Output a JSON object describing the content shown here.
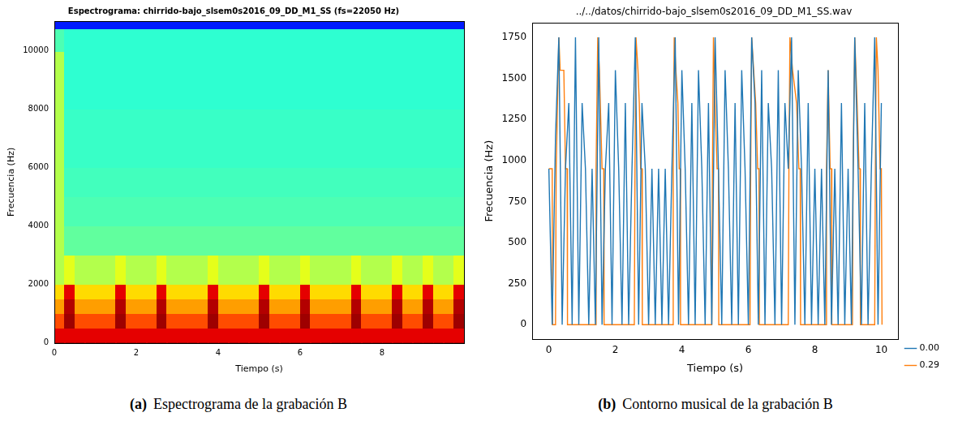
{
  "chart_data": [
    {
      "type": "heatmap",
      "panel_label": "(a)",
      "caption": "Espectrograma de la grabación B",
      "title": "Espectrograma: chirrido-bajo_slsem0s2016_09_DD_M1_SS (fs=22050 Hz)",
      "x_label": "Tiempo (s)",
      "y_label": "Frecuencia (Hz)",
      "xlim": [
        0,
        10
      ],
      "xticks": [
        0,
        2,
        4,
        6,
        8
      ],
      "ylim": [
        0,
        11025
      ],
      "yticks": [
        0,
        2000,
        4000,
        6000,
        8000,
        10000
      ],
      "grid": false,
      "x_bins": [
        0,
        0.25,
        0.5,
        0.75,
        1,
        1.25,
        1.5,
        1.75,
        2,
        2.25,
        2.5,
        2.75,
        3,
        3.25,
        3.5,
        3.75,
        4,
        4.25,
        4.5,
        4.75,
        5,
        5.25,
        5.5,
        5.75,
        6,
        6.25,
        6.5,
        6.75,
        7,
        7.25,
        7.5,
        7.75,
        8,
        8.25,
        8.5,
        8.75,
        9,
        9.25,
        9.5,
        9.75,
        10
      ],
      "y_bins": [
        0,
        500,
        1000,
        1500,
        2000,
        3000,
        4000,
        5000,
        6000,
        7000,
        8000,
        10000,
        10800,
        11025
      ],
      "cells": [
        [
          0.9,
          0.9,
          0.9,
          0.9,
          0.9,
          0.9,
          0.9,
          0.9,
          0.9,
          0.9,
          0.9,
          0.9,
          0.9,
          0.9,
          0.9,
          0.9,
          0.9,
          0.9,
          0.9,
          0.9,
          0.9,
          0.9,
          0.9,
          0.9,
          0.9,
          0.9,
          0.9,
          0.9,
          0.9,
          0.9,
          0.9,
          0.9,
          0.9,
          0.9,
          0.9,
          0.9,
          0.9,
          0.9,
          0.9,
          0.9
        ],
        [
          0.8,
          0.97,
          0.8,
          0.8,
          0.8,
          0.8,
          0.97,
          0.8,
          0.8,
          0.8,
          0.97,
          0.8,
          0.8,
          0.8,
          0.8,
          0.97,
          0.8,
          0.8,
          0.8,
          0.8,
          0.97,
          0.8,
          0.8,
          0.8,
          0.97,
          0.8,
          0.8,
          0.8,
          0.8,
          0.97,
          0.8,
          0.8,
          0.8,
          0.97,
          0.8,
          0.8,
          0.97,
          0.8,
          0.8,
          0.97
        ],
        [
          0.72,
          0.95,
          0.72,
          0.72,
          0.72,
          0.72,
          0.95,
          0.72,
          0.72,
          0.72,
          0.95,
          0.72,
          0.72,
          0.72,
          0.72,
          0.95,
          0.72,
          0.72,
          0.72,
          0.72,
          0.95,
          0.72,
          0.72,
          0.72,
          0.95,
          0.72,
          0.72,
          0.72,
          0.72,
          0.95,
          0.72,
          0.72,
          0.72,
          0.95,
          0.72,
          0.72,
          0.95,
          0.72,
          0.72,
          0.95
        ],
        [
          0.66,
          0.9,
          0.66,
          0.66,
          0.66,
          0.66,
          0.9,
          0.66,
          0.66,
          0.66,
          0.9,
          0.66,
          0.66,
          0.66,
          0.66,
          0.9,
          0.66,
          0.66,
          0.66,
          0.66,
          0.9,
          0.66,
          0.66,
          0.66,
          0.9,
          0.66,
          0.66,
          0.66,
          0.66,
          0.9,
          0.66,
          0.66,
          0.66,
          0.9,
          0.66,
          0.66,
          0.9,
          0.66,
          0.66,
          0.9
        ],
        [
          0.55,
          0.6,
          0.55,
          0.55,
          0.55,
          0.55,
          0.6,
          0.55,
          0.55,
          0.55,
          0.6,
          0.55,
          0.55,
          0.55,
          0.55,
          0.6,
          0.55,
          0.55,
          0.55,
          0.55,
          0.6,
          0.55,
          0.55,
          0.55,
          0.6,
          0.55,
          0.55,
          0.55,
          0.55,
          0.6,
          0.55,
          0.55,
          0.55,
          0.6,
          0.55,
          0.55,
          0.6,
          0.55,
          0.55,
          0.6
        ],
        [
          0.55,
          0.47,
          0.47,
          0.47,
          0.47,
          0.47,
          0.47,
          0.47,
          0.47,
          0.47,
          0.47,
          0.47,
          0.47,
          0.47,
          0.47,
          0.47,
          0.47,
          0.47,
          0.47,
          0.47,
          0.47,
          0.47,
          0.47,
          0.47,
          0.47,
          0.47,
          0.47,
          0.47,
          0.47,
          0.47,
          0.47,
          0.47,
          0.47,
          0.47,
          0.47,
          0.47,
          0.47,
          0.47,
          0.47,
          0.47
        ],
        [
          0.55,
          0.45,
          0.45,
          0.45,
          0.45,
          0.45,
          0.45,
          0.45,
          0.45,
          0.45,
          0.45,
          0.45,
          0.45,
          0.45,
          0.45,
          0.45,
          0.45,
          0.45,
          0.45,
          0.45,
          0.45,
          0.45,
          0.45,
          0.45,
          0.45,
          0.45,
          0.45,
          0.45,
          0.45,
          0.45,
          0.45,
          0.45,
          0.45,
          0.45,
          0.45,
          0.45,
          0.45,
          0.45,
          0.45,
          0.45
        ],
        [
          0.55,
          0.44,
          0.44,
          0.44,
          0.44,
          0.44,
          0.44,
          0.44,
          0.44,
          0.44,
          0.44,
          0.44,
          0.44,
          0.44,
          0.44,
          0.44,
          0.44,
          0.44,
          0.44,
          0.44,
          0.44,
          0.44,
          0.44,
          0.44,
          0.44,
          0.44,
          0.44,
          0.44,
          0.44,
          0.44,
          0.44,
          0.44,
          0.44,
          0.44,
          0.44,
          0.44,
          0.44,
          0.44,
          0.44,
          0.44
        ],
        [
          0.55,
          0.43,
          0.43,
          0.43,
          0.43,
          0.43,
          0.43,
          0.43,
          0.43,
          0.43,
          0.43,
          0.43,
          0.43,
          0.43,
          0.43,
          0.43,
          0.43,
          0.43,
          0.43,
          0.43,
          0.43,
          0.43,
          0.43,
          0.43,
          0.43,
          0.43,
          0.43,
          0.43,
          0.43,
          0.43,
          0.43,
          0.43,
          0.43,
          0.43,
          0.43,
          0.43,
          0.43,
          0.43,
          0.43,
          0.43
        ],
        [
          0.55,
          0.43,
          0.43,
          0.43,
          0.43,
          0.43,
          0.43,
          0.43,
          0.43,
          0.43,
          0.43,
          0.43,
          0.43,
          0.43,
          0.43,
          0.43,
          0.43,
          0.43,
          0.43,
          0.43,
          0.43,
          0.43,
          0.43,
          0.43,
          0.43,
          0.43,
          0.43,
          0.43,
          0.43,
          0.43,
          0.43,
          0.43,
          0.43,
          0.43,
          0.43,
          0.43,
          0.43,
          0.43,
          0.43,
          0.43
        ],
        [
          0.55,
          0.42,
          0.42,
          0.42,
          0.42,
          0.42,
          0.42,
          0.42,
          0.42,
          0.42,
          0.42,
          0.42,
          0.42,
          0.42,
          0.42,
          0.42,
          0.42,
          0.42,
          0.42,
          0.42,
          0.42,
          0.42,
          0.42,
          0.42,
          0.42,
          0.42,
          0.42,
          0.42,
          0.42,
          0.42,
          0.42,
          0.42,
          0.42,
          0.42,
          0.42,
          0.42,
          0.42,
          0.42,
          0.42,
          0.42
        ],
        [
          0.45,
          0.42,
          0.42,
          0.42,
          0.42,
          0.42,
          0.42,
          0.42,
          0.42,
          0.42,
          0.42,
          0.42,
          0.42,
          0.42,
          0.42,
          0.42,
          0.42,
          0.42,
          0.42,
          0.42,
          0.42,
          0.42,
          0.42,
          0.42,
          0.42,
          0.42,
          0.42,
          0.42,
          0.42,
          0.42,
          0.42,
          0.42,
          0.42,
          0.42,
          0.42,
          0.42,
          0.42,
          0.42,
          0.42,
          0.42
        ],
        [
          0.15,
          0.15,
          0.15,
          0.15,
          0.15,
          0.15,
          0.15,
          0.15,
          0.15,
          0.15,
          0.15,
          0.15,
          0.15,
          0.15,
          0.15,
          0.15,
          0.15,
          0.15,
          0.15,
          0.15,
          0.15,
          0.15,
          0.15,
          0.15,
          0.15,
          0.15,
          0.15,
          0.15,
          0.15,
          0.15,
          0.15,
          0.15,
          0.15,
          0.15,
          0.15,
          0.15,
          0.15,
          0.15,
          0.15,
          0.15
        ]
      ]
    },
    {
      "type": "line",
      "panel_label": "(b)",
      "caption": "Contorno musical de la grabación B",
      "title": "../../datos/chirrido-bajo_slsem0s2016_09_DD_M1_SS.wav",
      "x_label": "Tiempo (s)",
      "y_label": "Frecuencia (Hz)",
      "xlim": [
        -0.5,
        10.5
      ],
      "xticks": [
        0,
        2,
        4,
        6,
        8,
        10
      ],
      "ylim": [
        -87.5,
        1837.5
      ],
      "yticks": [
        0,
        250,
        500,
        750,
        1000,
        1250,
        1500,
        1750
      ],
      "grid": false,
      "legend": "right",
      "series": [
        {
          "name": "0.00",
          "color": "#1f77b4",
          "x": [
            0,
            0.1,
            0.2,
            0.3,
            0.4,
            0.5,
            0.6,
            0.7,
            0.8,
            0.9,
            1,
            1.1,
            1.2,
            1.3,
            1.4,
            1.5,
            1.6,
            1.7,
            1.8,
            1.9,
            2,
            2.1,
            2.2,
            2.3,
            2.4,
            2.5,
            2.6,
            2.7,
            2.8,
            2.9,
            3,
            3.1,
            3.2,
            3.3,
            3.4,
            3.5,
            3.6,
            3.7,
            3.8,
            3.9,
            4,
            4.1,
            4.2,
            4.3,
            4.4,
            4.5,
            4.6,
            4.7,
            4.8,
            4.9,
            5,
            5.1,
            5.2,
            5.3,
            5.4,
            5.5,
            5.6,
            5.7,
            5.8,
            5.9,
            6,
            6.1,
            6.2,
            6.3,
            6.4,
            6.5,
            6.6,
            6.7,
            6.8,
            6.9,
            7,
            7.1,
            7.2,
            7.3,
            7.4,
            7.5,
            7.6,
            7.7,
            7.8,
            7.9,
            8,
            8.1,
            8.2,
            8.3,
            8.4,
            8.5,
            8.6,
            8.7,
            8.8,
            8.9,
            9,
            9.1,
            9.2,
            9.3,
            9.4,
            9.5,
            9.6,
            9.7,
            9.8,
            9.9,
            10
          ],
          "values": [
            950,
            0,
            1150,
            1750,
            0,
            950,
            1350,
            0,
            1750,
            0,
            1350,
            950,
            0,
            950,
            0,
            1750,
            0,
            950,
            1350,
            0,
            1550,
            950,
            0,
            1350,
            0,
            950,
            1750,
            0,
            1350,
            950,
            0,
            950,
            0,
            950,
            0,
            950,
            0,
            950,
            1750,
            0,
            1550,
            950,
            0,
            1350,
            0,
            1550,
            950,
            0,
            1350,
            0,
            1750,
            950,
            0,
            1550,
            950,
            0,
            1350,
            0,
            1550,
            950,
            0,
            1750,
            1350,
            0,
            1550,
            0,
            1350,
            950,
            0,
            1550,
            0,
            1350,
            950,
            1750,
            0,
            1550,
            950,
            0,
            1350,
            0,
            950,
            0,
            950,
            0,
            1550,
            0,
            950,
            0,
            1350,
            0,
            950,
            0,
            1750,
            950,
            0,
            1350,
            0,
            950,
            1750,
            0,
            1350
          ]
        },
        {
          "name": "0.29",
          "color": "#ff7f0e",
          "x": [
            0,
            0.1,
            0.11,
            0.2,
            0.22,
            0.26,
            0.3,
            0.34,
            0.45,
            0.5,
            0.55,
            0.56,
            1.4,
            1.42,
            1.47,
            1.52,
            1.6,
            1.65,
            1.66,
            2.57,
            2.59,
            2.62,
            2.68,
            2.72,
            2.76,
            2.8,
            2.81,
            3.72,
            3.74,
            3.77,
            3.82,
            3.88,
            3.92,
            3.95,
            3.96,
            4.9,
            4.92,
            4.95,
            5,
            5.06,
            5.1,
            5.11,
            6.05,
            6.07,
            6.1,
            6.16,
            6.22,
            6.28,
            6.32,
            6.33,
            7.2,
            7.22,
            7.25,
            7.33,
            7.45,
            7.52,
            7.56,
            7.57,
            8.33,
            8.35,
            8.4,
            8.46,
            8.5,
            8.51,
            9.13,
            9.15,
            9.2,
            9.27,
            9.33,
            9.36,
            9.37,
            9.8,
            9.82,
            9.85,
            9.9,
            9.96,
            10,
            10.02
          ],
          "values": [
            950,
            950,
            0,
            0,
            950,
            1350,
            1750,
            1550,
            1550,
            950,
            950,
            0,
            0,
            950,
            1750,
            1550,
            950,
            950,
            0,
            0,
            950,
            1750,
            1550,
            1350,
            950,
            950,
            0,
            0,
            950,
            1750,
            1550,
            1350,
            950,
            950,
            0,
            0,
            950,
            1750,
            1350,
            950,
            950,
            0,
            0,
            950,
            1750,
            1550,
            1350,
            950,
            950,
            0,
            0,
            950,
            1750,
            1550,
            1350,
            950,
            950,
            0,
            0,
            950,
            1550,
            950,
            950,
            0,
            0,
            950,
            1750,
            1350,
            950,
            950,
            0,
            0,
            950,
            1750,
            1550,
            950,
            950,
            0
          ]
        }
      ]
    }
  ]
}
